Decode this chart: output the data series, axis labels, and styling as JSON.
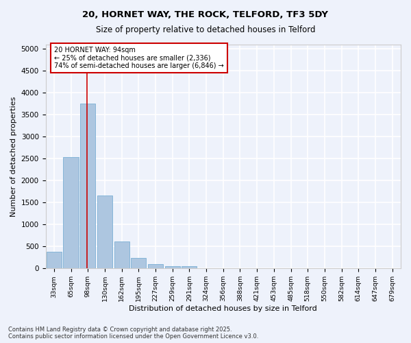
{
  "title1": "20, HORNET WAY, THE ROCK, TELFORD, TF3 5DY",
  "title2": "Size of property relative to detached houses in Telford",
  "xlabel": "Distribution of detached houses by size in Telford",
  "ylabel": "Number of detached properties",
  "categories": [
    "33sqm",
    "65sqm",
    "98sqm",
    "130sqm",
    "162sqm",
    "195sqm",
    "227sqm",
    "259sqm",
    "291sqm",
    "324sqm",
    "356sqm",
    "388sqm",
    "421sqm",
    "453sqm",
    "485sqm",
    "518sqm",
    "550sqm",
    "582sqm",
    "614sqm",
    "647sqm",
    "679sqm"
  ],
  "values": [
    380,
    2530,
    3760,
    1660,
    620,
    240,
    105,
    60,
    50,
    0,
    0,
    0,
    0,
    0,
    0,
    0,
    0,
    0,
    0,
    0,
    0
  ],
  "bar_color": "#adc6e0",
  "bar_edge_color": "#7aafd4",
  "vline_color": "#cc0000",
  "vline_pos": 1.93,
  "annotation_text_line1": "20 HORNET WAY: 94sqm",
  "annotation_text_line2": "← 25% of detached houses are smaller (2,336)",
  "annotation_text_line3": "74% of semi-detached houses are larger (6,846) →",
  "annotation_box_color": "#cc0000",
  "ylim": [
    0,
    5100
  ],
  "yticks": [
    0,
    500,
    1000,
    1500,
    2000,
    2500,
    3000,
    3500,
    4000,
    4500,
    5000
  ],
  "bg_color": "#eef2fb",
  "grid_color": "#ffffff",
  "footer1": "Contains HM Land Registry data © Crown copyright and database right 2025.",
  "footer2": "Contains public sector information licensed under the Open Government Licence v3.0."
}
